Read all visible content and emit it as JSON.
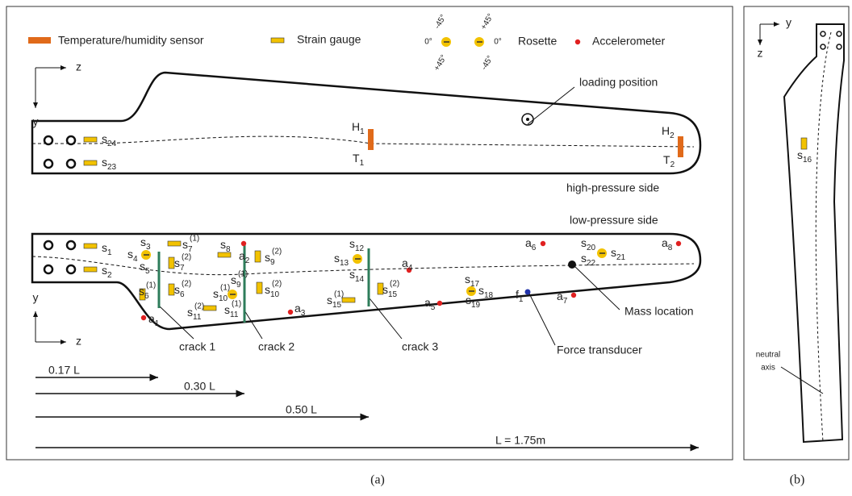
{
  "legend": {
    "temperature": "Temperature/humidity sensor",
    "strain": "Strain gauge",
    "rosette": "Rosette",
    "accelerometer": "Accelerometer",
    "rosette_angles": [
      "-45°",
      "0°",
      "+45°",
      "+45°",
      "0°",
      "-45°"
    ]
  },
  "panel_a": {
    "caption": "(a)",
    "top_view": {
      "axis_z": "z",
      "axis_y": "y",
      "loading": "loading position",
      "side": "high-pressure side",
      "labels": [
        {
          "b": "s",
          "sub": "24"
        },
        {
          "b": "s",
          "sub": "23"
        },
        {
          "b": "H",
          "sub": "1"
        },
        {
          "b": "T",
          "sub": "1"
        },
        {
          "b": "H",
          "sub": "2"
        },
        {
          "b": "T",
          "sub": "2"
        }
      ]
    },
    "bottom_view": {
      "axis_z": "z",
      "axis_y": "y",
      "side": "low-pressure side",
      "mass": "Mass location",
      "force": "Force transducer",
      "cracks": [
        "crack 1",
        "crack 2",
        "crack 3"
      ],
      "labels": [
        {
          "b": "s",
          "sub": "1"
        },
        {
          "b": "s",
          "sub": "2"
        },
        {
          "b": "s",
          "sub": "3"
        },
        {
          "b": "s",
          "sub": "4"
        },
        {
          "b": "s",
          "sub": "5"
        },
        {
          "b": "s",
          "sub": "7",
          "sup": "(1)"
        },
        {
          "b": "s",
          "sub": "7",
          "sup": "(2)"
        },
        {
          "b": "s",
          "sub": "8"
        },
        {
          "b": "a",
          "sub": "2"
        },
        {
          "b": "s",
          "sub": "9",
          "sup": "(2)"
        },
        {
          "b": "s",
          "sub": "9",
          "sup": "(1)"
        },
        {
          "b": "s",
          "sub": "10",
          "sup": "(1)"
        },
        {
          "b": "s",
          "sub": "10",
          "sup": "(2)"
        },
        {
          "b": "s",
          "sub": "6",
          "sup": "(1)"
        },
        {
          "b": "s",
          "sub": "6",
          "sup": "(2)"
        },
        {
          "b": "s",
          "sub": "11",
          "sup": "(2)"
        },
        {
          "b": "s",
          "sub": "11",
          "sup": "(1)"
        },
        {
          "b": "a",
          "sub": "1"
        },
        {
          "b": "a",
          "sub": "3"
        },
        {
          "b": "s",
          "sub": "12"
        },
        {
          "b": "s",
          "sub": "13"
        },
        {
          "b": "s",
          "sub": "14"
        },
        {
          "b": "s",
          "sub": "15",
          "sup": "(1)"
        },
        {
          "b": "s",
          "sub": "15",
          "sup": "(2)"
        },
        {
          "b": "a",
          "sub": "4"
        },
        {
          "b": "a",
          "sub": "5"
        },
        {
          "b": "a",
          "sub": "6"
        },
        {
          "b": "s",
          "sub": "17"
        },
        {
          "b": "s",
          "sub": "18"
        },
        {
          "b": "s",
          "sub": "19"
        },
        {
          "b": "f",
          "sub": "1"
        },
        {
          "b": "a",
          "sub": "7"
        },
        {
          "b": "s",
          "sub": "20"
        },
        {
          "b": "s",
          "sub": "22"
        },
        {
          "b": "s",
          "sub": "21"
        },
        {
          "b": "a",
          "sub": "8"
        }
      ]
    },
    "lengths": [
      "0.17 L",
      "0.30 L",
      "0.50 L",
      "L = 1.75m"
    ]
  },
  "panel_b": {
    "caption": "(b)",
    "axis_y": "y",
    "axis_z": "z",
    "label": {
      "b": "s",
      "sub": "16"
    },
    "neutral": [
      "neutral",
      "axis"
    ]
  }
}
